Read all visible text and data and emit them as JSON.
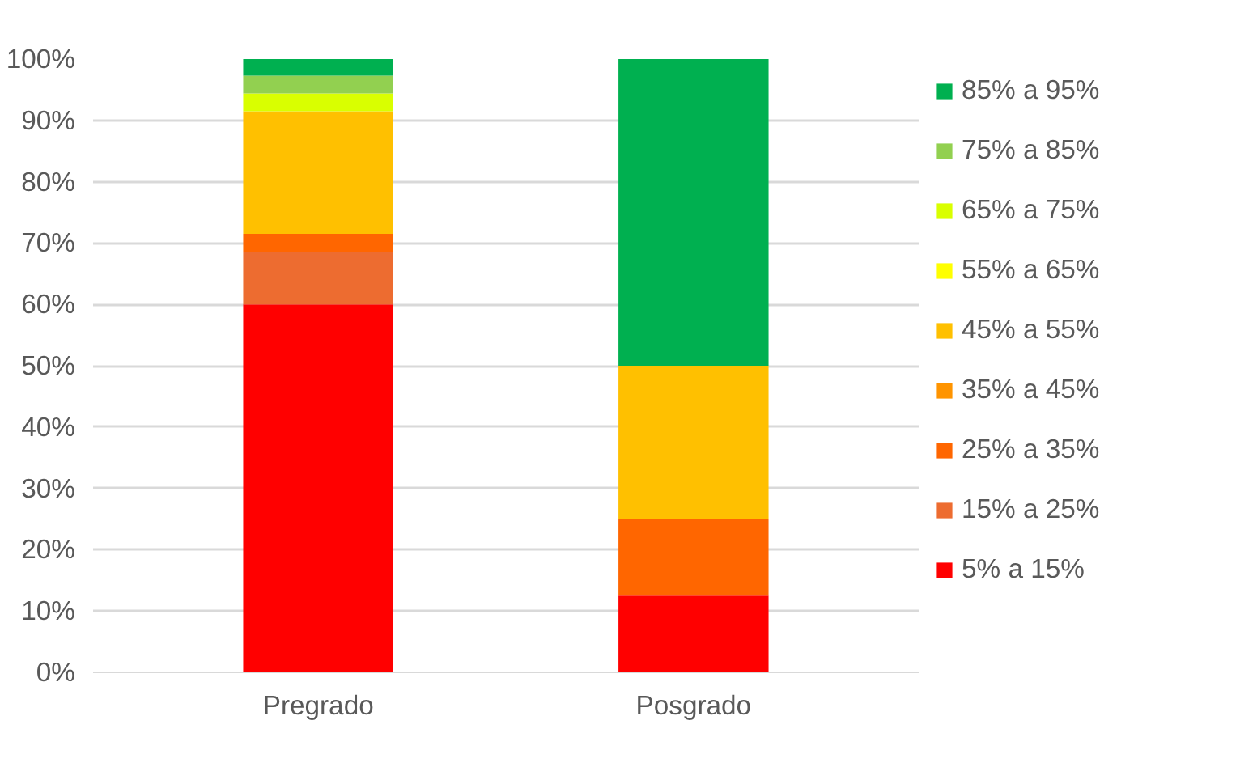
{
  "chart_data": {
    "type": "bar",
    "stacked": true,
    "categories": [
      "Pregrado",
      "Posgrado"
    ],
    "series": [
      {
        "name": "5% a 15%",
        "color": "#ff0000",
        "values": [
          60,
          12.5
        ]
      },
      {
        "name": "15% a 25%",
        "color": "#ed6c30",
        "values": [
          8.6,
          0
        ]
      },
      {
        "name": "25% a 35%",
        "color": "#ff6600",
        "values": [
          2.9,
          12.5
        ]
      },
      {
        "name": "35% a 45%",
        "color": "#ff9400",
        "values": [
          0,
          0
        ]
      },
      {
        "name": "45% a 55%",
        "color": "#ffc000",
        "values": [
          20,
          25
        ]
      },
      {
        "name": "55% a 65%",
        "color": "#ffff00",
        "values": [
          0,
          0
        ]
      },
      {
        "name": "65% a 75%",
        "color": "#d9ff00",
        "values": [
          2.9,
          0
        ]
      },
      {
        "name": "75% a 85%",
        "color": "#92d050",
        "values": [
          2.9,
          0
        ]
      },
      {
        "name": "85% a 95%",
        "color": "#00b050",
        "values": [
          2.7,
          50
        ]
      }
    ],
    "ylim": [
      0,
      100
    ],
    "yticks": [
      {
        "value": 0,
        "label": "0%"
      },
      {
        "value": 10,
        "label": "10%"
      },
      {
        "value": 20,
        "label": "20%"
      },
      {
        "value": 30,
        "label": "30%"
      },
      {
        "value": 40,
        "label": "40%"
      },
      {
        "value": 50,
        "label": "50%"
      },
      {
        "value": 60,
        "label": "60%"
      },
      {
        "value": 70,
        "label": "70%"
      },
      {
        "value": 80,
        "label": "80%"
      },
      {
        "value": 90,
        "label": "90%"
      },
      {
        "value": 100,
        "label": "100%"
      }
    ],
    "grid": "y",
    "legend": "right"
  }
}
